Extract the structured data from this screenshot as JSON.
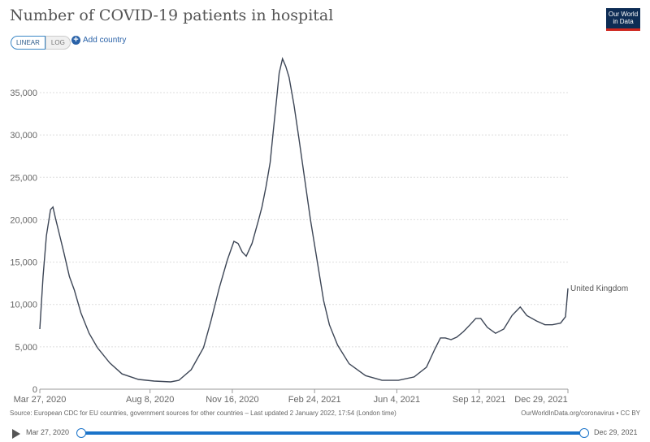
{
  "header": {
    "title": "Number of COVID-19 patients in hospital",
    "logo": "Our World in Data",
    "linear": "LINEAR",
    "log": "LOG",
    "add_country": "Add country",
    "add_icon": "plus-circle-icon"
  },
  "footer": {
    "source": "Source: European CDC for EU countries, government sources for other countries – Last updated 2 January 2022, 17:54 (London time)",
    "credit": "OurWorldInData.org/coronavirus • CC BY"
  },
  "timeline": {
    "start": "Mar 27, 2020",
    "end": "Dec 29, 2021",
    "play_icon": "play-icon"
  },
  "chart_data": {
    "type": "line",
    "title": "Number of COVID-19 patients in hospital",
    "xlim": [
      "2020-03-27",
      "2021-12-29"
    ],
    "ylim": [
      0,
      39000
    ],
    "grid": "horizontal dotted",
    "scale": "linear",
    "x_ticks": [
      "Mar 27, 2020",
      "Aug 8, 2020",
      "Nov 16, 2020",
      "Feb 24, 2021",
      "Jun 4, 2021",
      "Sep 12, 2021",
      "Dec 29, 2021"
    ],
    "x_tick_dates": [
      "2020-03-27",
      "2020-08-08",
      "2020-11-16",
      "2021-02-24",
      "2021-06-04",
      "2021-09-12",
      "2021-12-29"
    ],
    "y_ticks": [
      0,
      5000,
      10000,
      15000,
      20000,
      25000,
      30000,
      35000
    ],
    "y_tick_labels": [
      "0",
      "5,000",
      "10,000",
      "15,000",
      "20,000",
      "25,000",
      "30,000",
      "35,000"
    ],
    "series": [
      {
        "name": "United Kingdom",
        "color": "#3d4656",
        "x": [
          "2020-03-27",
          "2020-03-31",
          "2020-04-04",
          "2020-04-09",
          "2020-04-12",
          "2020-04-15",
          "2020-04-19",
          "2020-04-25",
          "2020-05-02",
          "2020-05-08",
          "2020-05-16",
          "2020-05-26",
          "2020-06-05",
          "2020-06-20",
          "2020-07-05",
          "2020-07-25",
          "2020-08-13",
          "2020-09-02",
          "2020-09-12",
          "2020-09-27",
          "2020-10-12",
          "2020-10-21",
          "2020-10-31",
          "2020-11-10",
          "2020-11-18",
          "2020-11-23",
          "2020-11-28",
          "2020-12-03",
          "2020-12-10",
          "2020-12-18",
          "2020-12-22",
          "2020-12-27",
          "2021-01-01",
          "2021-01-05",
          "2021-01-09",
          "2021-01-12",
          "2021-01-16",
          "2021-01-20",
          "2021-01-24",
          "2021-01-30",
          "2021-02-05",
          "2021-02-12",
          "2021-02-19",
          "2021-02-27",
          "2021-03-07",
          "2021-03-14",
          "2021-03-24",
          "2021-04-07",
          "2021-04-27",
          "2021-05-17",
          "2021-06-06",
          "2021-06-25",
          "2021-07-10",
          "2021-07-20",
          "2021-07-27",
          "2021-08-02",
          "2021-08-09",
          "2021-08-16",
          "2021-08-24",
          "2021-09-01",
          "2021-09-08",
          "2021-09-14",
          "2021-09-22",
          "2021-10-02",
          "2021-10-12",
          "2021-10-22",
          "2021-11-01",
          "2021-11-09",
          "2021-11-21",
          "2021-12-01",
          "2021-12-10",
          "2021-12-20",
          "2021-12-26",
          "2021-12-29"
        ],
        "y": [
          7100,
          13300,
          18100,
          21200,
          21500,
          20200,
          18600,
          16200,
          13300,
          11700,
          9000,
          6600,
          4900,
          3100,
          1800,
          1150,
          960,
          860,
          1050,
          2300,
          4900,
          8050,
          11900,
          15250,
          17450,
          17200,
          16200,
          15700,
          17200,
          20000,
          21500,
          23900,
          26750,
          30600,
          34400,
          37300,
          39000,
          38100,
          36800,
          33500,
          29600,
          24800,
          20000,
          15250,
          10450,
          7600,
          5200,
          3000,
          1600,
          1050,
          1050,
          1450,
          2600,
          4700,
          6050,
          6050,
          5850,
          6150,
          6800,
          7600,
          8350,
          8350,
          7300,
          6600,
          7100,
          8700,
          9700,
          8700,
          8050,
          7600,
          7600,
          7800,
          8550,
          11900
        ]
      }
    ]
  }
}
